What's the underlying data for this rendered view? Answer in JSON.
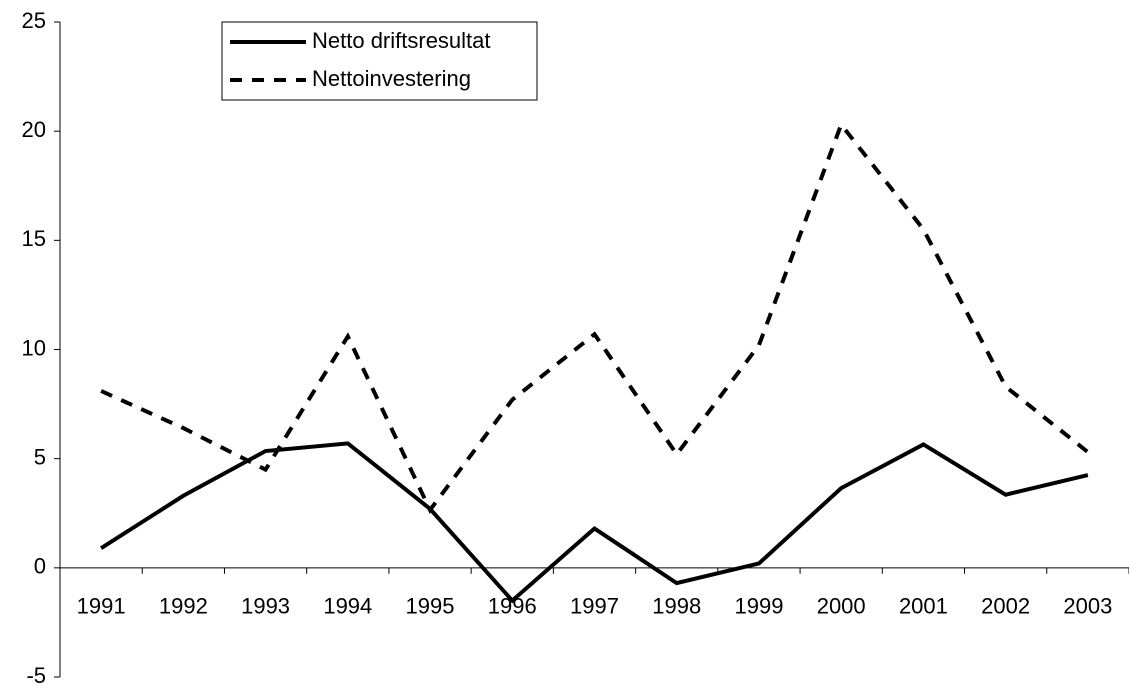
{
  "chart_data": {
    "type": "line",
    "categories": [
      "1991",
      "1992",
      "1993",
      "1994",
      "1995",
      "1996",
      "1997",
      "1998",
      "1999",
      "2000",
      "2001",
      "2002",
      "2003"
    ],
    "series": [
      {
        "name": "Netto driftsresultat",
        "color": "#000000",
        "dash": "solid",
        "values": [
          0.9,
          3.3,
          5.35,
          5.7,
          2.7,
          -1.5,
          1.8,
          -0.7,
          0.2,
          3.65,
          5.65,
          3.35,
          4.25
        ]
      },
      {
        "name": "Nettoinvestering",
        "color": "#000000",
        "dash": "dashed",
        "values": [
          8.1,
          6.4,
          4.5,
          10.6,
          2.65,
          7.7,
          10.7,
          5.2,
          10.2,
          20.3,
          15.5,
          8.3,
          5.3
        ]
      }
    ],
    "ylim": [
      -5,
      25
    ],
    "yticks": [
      -5,
      0,
      5,
      10,
      15,
      20,
      25
    ],
    "grid": false,
    "legend": "upper left"
  }
}
